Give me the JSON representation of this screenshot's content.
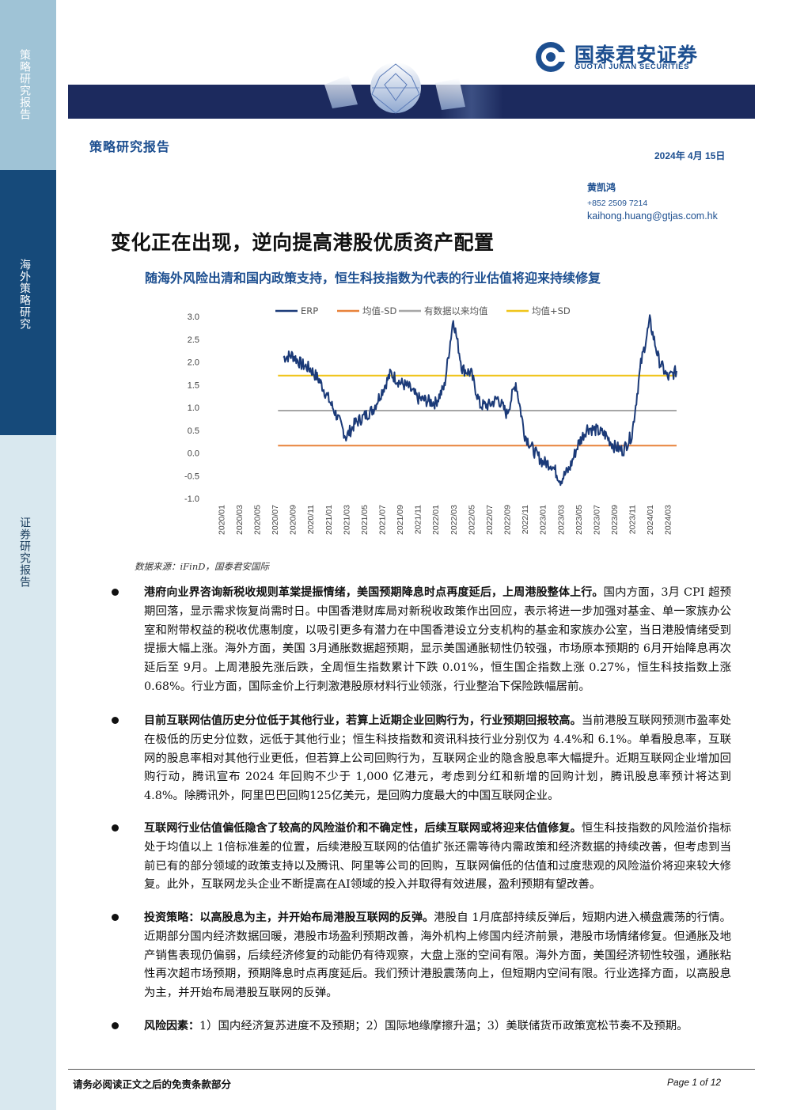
{
  "sidebar": {
    "section1": "策略研究报告",
    "section2": "海外策略研究",
    "section3": "证券研究报告"
  },
  "header": {
    "logo_cn": "国泰君安证券",
    "logo_en": "GUOTAI JUNAN SECURITIES",
    "category": "策略研究报告",
    "date": "2024年 4月 15日",
    "author": "黄凯鸿",
    "phone": "+852 2509 7214",
    "email": "kaihong.huang@gtjas.com.hk"
  },
  "title": "变化正在出现，逆向提高港股优质资产配置",
  "subtitle": "随海外风险出清和国内政策支持，恒生科技指数为代表的行业估值将迎来持续修复",
  "chart_data": {
    "type": "line",
    "legend": [
      "ERP",
      "均值-SD",
      "有数据以来均值",
      "均值+SD"
    ],
    "legend_placement": "top",
    "colors": {
      "ERP": "#1b3a78",
      "mean_minus_sd": "#e8823a",
      "mean": "#a6a6a6",
      "mean_plus_sd": "#f0c419"
    },
    "ylim": [
      -1.0,
      3.0
    ],
    "yticks": [
      "3.0",
      "2.5",
      "2.0",
      "1.5",
      "1.0",
      "0.5",
      "0.0",
      "-0.5",
      "-1.0"
    ],
    "xticks": [
      "2020/01",
      "2020/03",
      "2020/05",
      "2020/07",
      "2020/09",
      "2020/11",
      "2021/01",
      "2021/03",
      "2021/05",
      "2021/07",
      "2021/09",
      "2021/11",
      "2022/01",
      "2022/03",
      "2022/05",
      "2022/07",
      "2022/09",
      "2022/11",
      "2023/01",
      "2023/03",
      "2023/05",
      "2023/07",
      "2023/09",
      "2023/11",
      "2024/01",
      "2024/03"
    ],
    "reference_lines": {
      "mean_minus_sd": 0.16,
      "mean": 0.93,
      "mean_plus_sd": 1.7
    },
    "series_erp": [
      [
        "2020/08",
        2.1
      ],
      [
        "2020/09",
        2.15
      ],
      [
        "2020/10",
        1.95
      ],
      [
        "2020/11",
        1.85
      ],
      [
        "2020/12",
        1.6
      ],
      [
        "2021/01",
        1.2
      ],
      [
        "2021/02",
        0.8
      ],
      [
        "2021/03",
        0.35
      ],
      [
        "2021/04",
        0.65
      ],
      [
        "2021/05",
        0.8
      ],
      [
        "2021/06",
        0.95
      ],
      [
        "2021/07",
        1.35
      ],
      [
        "2021/08",
        1.75
      ],
      [
        "2021/09",
        1.55
      ],
      [
        "2021/10",
        1.45
      ],
      [
        "2021/11",
        1.2
      ],
      [
        "2021/12",
        1.15
      ],
      [
        "2022/01",
        1.1
      ],
      [
        "2022/02",
        1.45
      ],
      [
        "2022/03",
        2.95
      ],
      [
        "2022/04",
        1.85
      ],
      [
        "2022/05",
        1.75
      ],
      [
        "2022/06",
        1.05
      ],
      [
        "2022/07",
        1.05
      ],
      [
        "2022/08",
        1.2
      ],
      [
        "2022/09",
        0.85
      ],
      [
        "2022/10",
        1.55
      ],
      [
        "2022/11",
        0.4
      ],
      [
        "2022/12",
        0.05
      ],
      [
        "2023/01",
        -0.2
      ],
      [
        "2023/02",
        -0.25
      ],
      [
        "2023/03",
        -0.6
      ],
      [
        "2023/04",
        -0.35
      ],
      [
        "2023/05",
        0.2
      ],
      [
        "2023/06",
        0.55
      ],
      [
        "2023/07",
        0.5
      ],
      [
        "2023/08",
        0.4
      ],
      [
        "2023/09",
        0.15
      ],
      [
        "2023/10",
        0.05
      ],
      [
        "2023/11",
        0.4
      ],
      [
        "2023/12",
        1.95
      ],
      [
        "2024/01",
        2.9
      ],
      [
        "2024/02",
        2.05
      ],
      [
        "2024/03",
        1.65
      ],
      [
        "2024/04",
        1.8
      ]
    ]
  },
  "source": "数据来源：iFinD，国泰君安国际",
  "bullets": [
    {
      "lead": "港府向业界咨询新税收规则革棠提振情绪，美国预期降息时点再度延后，上周港股整体上行。",
      "body": "国内方面，3月 CPI 超预期回落，显示需求恢复尚需时日。中国香港财库局对新税收政策作出回应，表示将进一步加强对基金、单一家族办公室和附带权益的税收优惠制度，以吸引更多有潜力在中国香港设立分支机构的基金和家族办公室，当日港股情绪受到提振大幅上涨。海外方面，美国 3月通胀数据超预期，显示美国通胀韧性仍较强，市场原本预期的 6月开始降息再次延后至 9月。上周港股先涨后跌，全周恒生指数累计下跌 0.01%，恒生国企指数上涨 0.27%，恒生科技指数上涨 0.68%。行业方面，国际金价上行刺激港股原材料行业领涨，行业整治下保险跌幅居前。"
    },
    {
      "lead": "目前互联网估值历史分位低于其他行业，若算上近期企业回购行为，行业预期回报较高。",
      "body": "当前港股互联网预测市盈率处在极低的历史分位数，远低于其他行业；恒生科技指数和资讯科技行业分别仅为 4.4%和 6.1%。单看股息率，互联网的股息率相对其他行业更低，但若算上公司回购行为，互联网企业的隐含股息率大幅提升。近期互联网企业增加回购行动，腾讯宣布 2024 年回购不少于 1,000 亿港元，考虑到分红和新增的回购计划，腾讯股息率预计将达到 4.8%。除腾讯外，阿里巴巴回购125亿美元，是回购力度最大的中国互联网企业。"
    },
    {
      "lead": "互联网行业估值偏低隐含了较高的风险溢价和不确定性，后续互联网或将迎来估值修复。",
      "body": "恒生科技指数的风险溢价指标处于均值以上 1倍标准差的位置，后续港股互联网的估值扩张还需等待内需政策和经济数据的持续改善，但考虑到当前已有的部分领域的政策支持以及腾讯、阿里等公司的回购，互联网偏低的估值和过度悲观的风险溢价将迎来较大修复。此外，互联网龙头企业不断提高在AI领域的投入并取得有效进展，盈利预期有望改善。"
    },
    {
      "lead": "投资策略：以高股息为主，并开始布局港股互联网的反弹。",
      "body": "港股自 1月底部持续反弹后，短期内进入横盘震荡的行情。近期部分国内经济数据回暖，港股市场盈利预期改善，海外机构上修国内经济前景，港股市场情绪修复。但通胀及地产销售表现仍偏弱，后续经济修复的动能仍有待观察，大盘上涨的空间有限。海外方面，美国经济韧性较强，通胀粘性再次超市场预期，预期降息时点再度延后。我们预计港股震荡向上，但短期内空间有限。行业选择方面，以高股息为主，并开始布局港股互联网的反弹。"
    },
    {
      "lead": "风险因素：",
      "body": "1）国内经济复苏进度不及预期；2）国际地缘摩擦升温；3）美联储货币政策宽松节奏不及预期。"
    }
  ],
  "footer": {
    "disclaimer": "请务必阅读正文之后的免责条款部分",
    "page": "Page 1 of 12"
  }
}
